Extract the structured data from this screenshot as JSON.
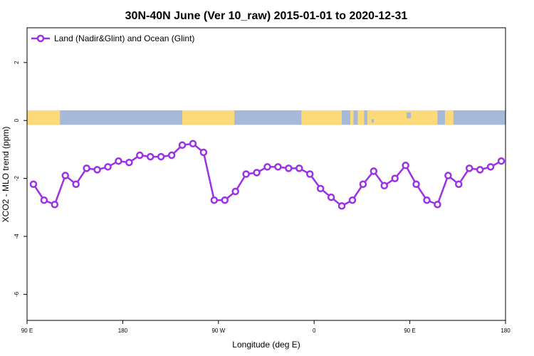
{
  "chart_data": {
    "type": "line",
    "title": "30N-40N June (Ver 10_raw)   2015-01-01 to 2020-12-31",
    "xlabel": "Longitude (deg E)",
    "ylabel": "XCO2 - MLO trend (ppm)",
    "x_ticks": [
      {
        "value": 90,
        "label": "90 E"
      },
      {
        "value": 180,
        "label": "180"
      },
      {
        "value": 270,
        "label": "90 W"
      },
      {
        "value": 360,
        "label": "0"
      },
      {
        "value": 450,
        "label": "90 E"
      },
      {
        "value": 540,
        "label": "180"
      }
    ],
    "y_ticks": [
      {
        "value": 2,
        "label": "2"
      },
      {
        "value": 0,
        "label": "0"
      },
      {
        "value": -2,
        "label": "-2"
      },
      {
        "value": -4,
        "label": "-4"
      },
      {
        "value": -6,
        "label": "-6"
      }
    ],
    "xlim": [
      90,
      540
    ],
    "ylim": [
      -6.9,
      3.2
    ],
    "grid": false,
    "legend_position": "top-left",
    "series": [
      {
        "name": "Land (Nadir&Glint) and Ocean (Glint)",
        "color": "#9b30e6",
        "x": [
          96,
          106,
          116,
          126,
          136,
          146,
          156,
          166,
          176,
          186,
          196,
          206,
          216,
          226,
          236,
          246,
          256,
          266,
          276,
          286,
          296,
          306,
          316,
          326,
          336,
          346,
          356,
          366,
          376,
          386,
          396,
          406,
          416,
          426,
          436,
          446,
          456,
          466,
          476,
          486,
          496,
          506,
          516,
          526,
          536
        ],
        "y": [
          -2.2,
          -2.75,
          -2.9,
          -1.9,
          -2.2,
          -1.65,
          -1.7,
          -1.6,
          -1.4,
          -1.45,
          -1.2,
          -1.25,
          -1.25,
          -1.2,
          -0.85,
          -0.8,
          -1.1,
          -2.75,
          -2.75,
          -2.45,
          -1.85,
          -1.8,
          -1.6,
          -1.6,
          -1.65,
          -1.65,
          -1.85,
          -2.35,
          -2.65,
          -2.95,
          -2.75,
          -2.2,
          -1.75,
          -2.25,
          -2.0,
          -1.55,
          -2.2,
          -2.75,
          -2.9,
          -1.9,
          -2.2,
          -1.65,
          -1.7,
          -1.6,
          -1.4
        ]
      }
    ],
    "land_mask": {
      "y_range": [
        -0.15,
        0.35
      ],
      "land_color": "#fcd979",
      "ocean_color": "#a6b9d9",
      "land_segments": [
        [
          90,
          121
        ],
        [
          236,
          285
        ],
        [
          348,
          386
        ],
        [
          394,
          397
        ],
        [
          401,
          407
        ],
        [
          410,
          412
        ],
        [
          412,
          476
        ],
        [
          483,
          491
        ]
      ],
      "ocean_speckles": [
        [
          388,
          391
        ],
        [
          398,
          400
        ],
        [
          408,
          409
        ],
        [
          414,
          416
        ],
        [
          447,
          451
        ],
        [
          478,
          481
        ]
      ]
    }
  }
}
